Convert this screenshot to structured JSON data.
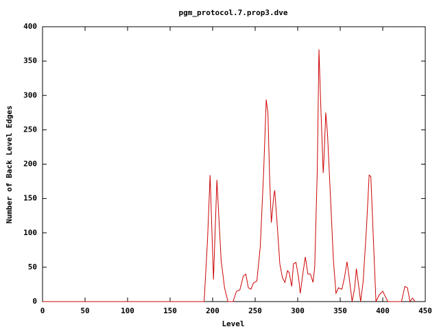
{
  "chart_data": {
    "type": "line",
    "title": "pgm_protocol.7.prop3.dve",
    "x_label": "Level",
    "y_label": "Number of Back Level Edges",
    "xlim": [
      0,
      450
    ],
    "ylim": [
      0,
      400
    ],
    "xticks": [
      0,
      50,
      100,
      150,
      200,
      250,
      300,
      350,
      400,
      450
    ],
    "yticks": [
      0,
      50,
      100,
      150,
      200,
      250,
      300,
      350,
      400
    ],
    "x": [
      0,
      190,
      194,
      197,
      201,
      205,
      210,
      214,
      218,
      224,
      228,
      232,
      236,
      239,
      242,
      245,
      248,
      252,
      256,
      260,
      263,
      265,
      267,
      269,
      272,
      273,
      276,
      279,
      282,
      285,
      288,
      290,
      293,
      295,
      298,
      301,
      303,
      306,
      309,
      312,
      315,
      318,
      320,
      323,
      325,
      327,
      330,
      331,
      333,
      335,
      339,
      342,
      345,
      348,
      352,
      355,
      358,
      360,
      364,
      367,
      369,
      372,
      374,
      377,
      381,
      384,
      386,
      390,
      392,
      396,
      400,
      404,
      406,
      422,
      426,
      429,
      432,
      435,
      438
    ],
    "series": [
      {
        "color": "#cc0000",
        "values": [
          0,
          0,
          90,
          184,
          32,
          177,
          60,
          20,
          0,
          0,
          15,
          17,
          37,
          40,
          20,
          18,
          27,
          30,
          80,
          190,
          294,
          274,
          180,
          115,
          155,
          162,
          110,
          55,
          35,
          28,
          45,
          42,
          22,
          55,
          57,
          35,
          12,
          40,
          65,
          40,
          40,
          28,
          50,
          190,
          367,
          290,
          187,
          210,
          275,
          245,
          140,
          60,
          12,
          20,
          18,
          35,
          58,
          40,
          0,
          20,
          48,
          20,
          0,
          30,
          110,
          184,
          182,
          60,
          0,
          10,
          15,
          5,
          0,
          0,
          22,
          20,
          0,
          5,
          0
        ]
      }
    ]
  }
}
